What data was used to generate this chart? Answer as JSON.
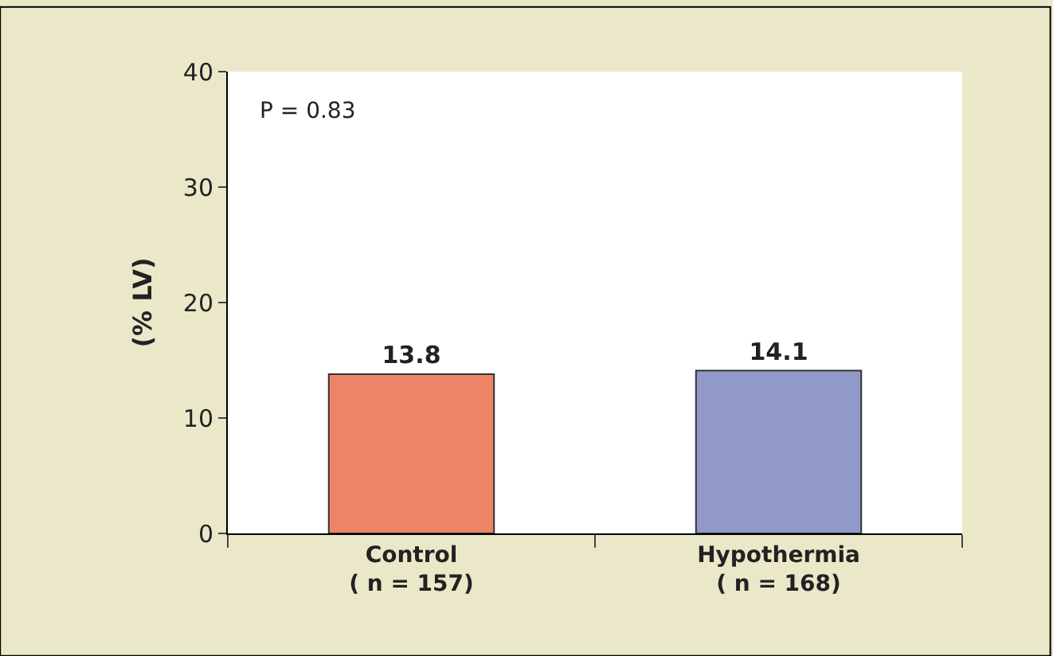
{
  "chart_data": {
    "type": "bar",
    "ylabel": "(% LV)",
    "categories": [
      "Control\n( n = 157)",
      "Hypothermia\n( n = 168)"
    ],
    "values": [
      13.8,
      14.1
    ],
    "colors": [
      "#ee8466",
      "#9199c9"
    ],
    "ylim": [
      0,
      40
    ],
    "yticks": [
      0,
      10,
      20,
      30,
      40
    ],
    "data_labels": true,
    "legend": false,
    "annotations": [
      "P = 0.83"
    ]
  }
}
